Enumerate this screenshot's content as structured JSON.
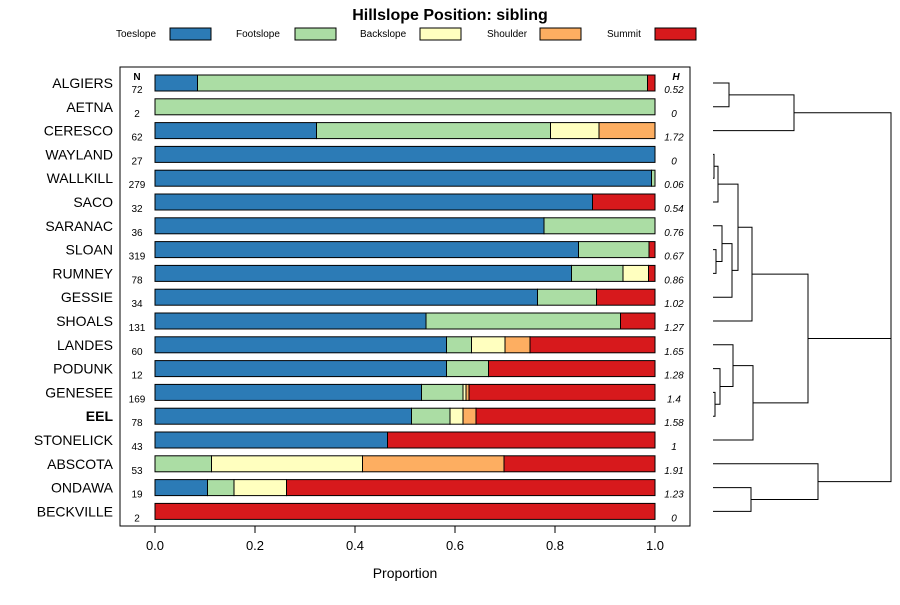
{
  "chart_data": {
    "type": "bar",
    "orientation": "horizontal-stacked",
    "title": "Hillslope Position: sibling",
    "xlabel": "Proportion",
    "xlim": [
      0,
      1
    ],
    "xticks": [
      "0.0",
      "0.2",
      "0.4",
      "0.6",
      "0.8",
      "1.0"
    ],
    "n_header": "N",
    "h_header": "H",
    "legend": [
      {
        "name": "Toeslope",
        "color": "#2c7bb6"
      },
      {
        "name": "Footslope",
        "color": "#abdda4"
      },
      {
        "name": "Backslope",
        "color": "#ffffbf"
      },
      {
        "name": "Shoulder",
        "color": "#fdae61"
      },
      {
        "name": "Summit",
        "color": "#d7191c"
      }
    ],
    "rows": [
      {
        "name": "ALGIERS",
        "n": "72",
        "h": "0.52",
        "bold": false,
        "values": [
          0.085,
          0.9,
          0,
          0,
          0.015
        ]
      },
      {
        "name": "AETNA",
        "n": "2",
        "h": "0",
        "bold": false,
        "values": [
          0,
          1.0,
          0,
          0,
          0
        ]
      },
      {
        "name": "CERESCO",
        "n": "62",
        "h": "1.72",
        "bold": false,
        "values": [
          0.323,
          0.468,
          0.097,
          0.112,
          0
        ]
      },
      {
        "name": "WAYLAND",
        "n": "27",
        "h": "0",
        "bold": false,
        "values": [
          1.0,
          0,
          0,
          0,
          0
        ]
      },
      {
        "name": "WALLKILL",
        "n": "279",
        "h": "0.06",
        "bold": false,
        "values": [
          0.993,
          0.007,
          0,
          0,
          0
        ]
      },
      {
        "name": "SACO",
        "n": "32",
        "h": "0.54",
        "bold": false,
        "values": [
          0.875,
          0,
          0,
          0,
          0.125
        ]
      },
      {
        "name": "SARANAC",
        "n": "36",
        "h": "0.76",
        "bold": false,
        "values": [
          0.778,
          0.222,
          0,
          0,
          0
        ]
      },
      {
        "name": "SLOAN",
        "n": "319",
        "h": "0.67",
        "bold": false,
        "values": [
          0.847,
          0.141,
          0,
          0,
          0.012
        ]
      },
      {
        "name": "RUMNEY",
        "n": "78",
        "h": "0.86",
        "bold": false,
        "values": [
          0.833,
          0.103,
          0.051,
          0,
          0.013
        ]
      },
      {
        "name": "GESSIE",
        "n": "34",
        "h": "1.02",
        "bold": false,
        "values": [
          0.765,
          0.118,
          0,
          0,
          0.117
        ]
      },
      {
        "name": "SHOALS",
        "n": "131",
        "h": "1.27",
        "bold": false,
        "values": [
          0.542,
          0.389,
          0,
          0,
          0.069
        ]
      },
      {
        "name": "LANDES",
        "n": "60",
        "h": "1.65",
        "bold": false,
        "values": [
          0.583,
          0.05,
          0.067,
          0.05,
          0.25
        ]
      },
      {
        "name": "PODUNK",
        "n": "12",
        "h": "1.28",
        "bold": false,
        "values": [
          0.583,
          0.084,
          0,
          0,
          0.333
        ]
      },
      {
        "name": "GENESEE",
        "n": "169",
        "h": "1.4",
        "bold": false,
        "values": [
          0.533,
          0.083,
          0.006,
          0.006,
          0.372
        ]
      },
      {
        "name": "EEL",
        "n": "78",
        "h": "1.58",
        "bold": true,
        "values": [
          0.513,
          0.077,
          0.026,
          0.026,
          0.358
        ]
      },
      {
        "name": "STONELICK",
        "n": "43",
        "h": "1",
        "bold": false,
        "values": [
          0.465,
          0,
          0,
          0,
          0.535
        ]
      },
      {
        "name": "ABSCOTA",
        "n": "53",
        "h": "1.91",
        "bold": false,
        "values": [
          0,
          0.113,
          0.302,
          0.283,
          0.302
        ]
      },
      {
        "name": "ONDAWA",
        "n": "19",
        "h": "1.23",
        "bold": false,
        "values": [
          0.105,
          0.053,
          0.105,
          0,
          0.737
        ]
      },
      {
        "name": "BECKVILLE",
        "n": "2",
        "h": "0",
        "bold": false,
        "values": [
          0,
          0,
          0,
          0,
          1.0
        ]
      }
    ]
  }
}
